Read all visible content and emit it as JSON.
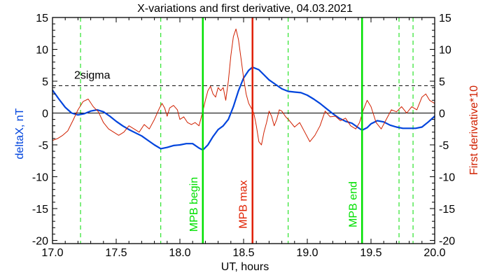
{
  "chart_data": {
    "type": "line",
    "title": "X-variations and first derivative, 04.03.2021",
    "xlabel": "UT, hours",
    "ylabel_left": "deltaX, nT",
    "ylabel_right": "First derivative*10",
    "xlim": [
      17.0,
      20.0
    ],
    "ylim": [
      -20.5,
      15
    ],
    "x_ticks": [
      "17.0",
      "17.5",
      "18.0",
      "18.5",
      "19.0",
      "19.5",
      "20.0"
    ],
    "x_tick_values": [
      17.0,
      17.5,
      18.0,
      18.5,
      19.0,
      19.5,
      20.0
    ],
    "y_ticks": [
      "15",
      "10",
      "5",
      "0",
      "-5",
      "-10",
      "-15",
      "-20"
    ],
    "y_tick_values": [
      15,
      10,
      5,
      0,
      -5,
      -10,
      -15,
      -20
    ],
    "threshold": {
      "label": "2sigma",
      "value": 4.3
    },
    "zero_line": 0,
    "dashed_vlines": [
      17.22,
      17.85,
      18.85,
      19.72,
      19.83
    ],
    "markers": [
      {
        "label": "MPB begin",
        "x": 18.18,
        "color": "#00e000"
      },
      {
        "label": "MPB max",
        "x": 18.57,
        "color": "#e02000"
      },
      {
        "label": "MPB end",
        "x": 19.43,
        "color": "#00e000"
      }
    ],
    "colors": {
      "deltaX": "#0044dd",
      "derivative": "#d02000",
      "dashed_vline": "#00dd00"
    },
    "series": [
      {
        "name": "deltaX, nT",
        "color": "#0044dd",
        "x": [
          17.0,
          17.05,
          17.1,
          17.15,
          17.2,
          17.25,
          17.3,
          17.35,
          17.4,
          17.45,
          17.5,
          17.55,
          17.6,
          17.65,
          17.7,
          17.75,
          17.8,
          17.85,
          17.9,
          17.95,
          18.0,
          18.05,
          18.1,
          18.15,
          18.18,
          18.22,
          18.26,
          18.3,
          18.34,
          18.38,
          18.42,
          18.46,
          18.5,
          18.54,
          18.57,
          18.62,
          18.66,
          18.7,
          18.75,
          18.8,
          18.85,
          18.9,
          18.95,
          19.0,
          19.05,
          19.1,
          19.15,
          19.2,
          19.25,
          19.3,
          19.35,
          19.4,
          19.43,
          19.47,
          19.5,
          19.55,
          19.6,
          19.65,
          19.7,
          19.75,
          19.8,
          19.85,
          19.9,
          19.95,
          20.0
        ],
        "y": [
          3.6,
          2.2,
          0.9,
          0.0,
          -0.3,
          -0.1,
          0.3,
          0.5,
          0.2,
          -0.5,
          -1.3,
          -2.0,
          -2.6,
          -3.1,
          -3.6,
          -4.3,
          -5.0,
          -5.6,
          -5.4,
          -5.1,
          -5.0,
          -4.8,
          -4.8,
          -5.5,
          -5.8,
          -5.0,
          -3.7,
          -2.6,
          -2.0,
          -1.0,
          1.0,
          3.5,
          5.5,
          6.7,
          7.2,
          6.8,
          6.0,
          5.2,
          4.5,
          3.8,
          3.4,
          3.3,
          3.2,
          2.8,
          2.2,
          1.5,
          0.7,
          -0.1,
          -0.8,
          -1.3,
          -1.6,
          -2.3,
          -2.7,
          -2.3,
          -1.7,
          -1.2,
          -1.4,
          -1.9,
          -2.2,
          -2.4,
          -2.4,
          -2.4,
          -2.2,
          -1.4,
          -0.5
        ]
      },
      {
        "name": "First derivative*10",
        "color": "#d02000",
        "x": [
          17.0,
          17.04,
          17.08,
          17.12,
          17.16,
          17.2,
          17.24,
          17.28,
          17.32,
          17.36,
          17.4,
          17.44,
          17.48,
          17.52,
          17.56,
          17.6,
          17.64,
          17.68,
          17.72,
          17.76,
          17.8,
          17.84,
          17.86,
          17.88,
          17.9,
          17.92,
          17.95,
          17.98,
          18.0,
          18.03,
          18.06,
          18.09,
          18.12,
          18.15,
          18.18,
          18.2,
          18.22,
          18.24,
          18.26,
          18.28,
          18.3,
          18.32,
          18.34,
          18.36,
          18.38,
          18.4,
          18.42,
          18.44,
          18.46,
          18.48,
          18.5,
          18.52,
          18.54,
          18.56,
          18.58,
          18.6,
          18.62,
          18.64,
          18.66,
          18.68,
          18.7,
          18.72,
          18.74,
          18.76,
          18.78,
          18.8,
          18.83,
          18.86,
          18.9,
          18.94,
          18.98,
          19.02,
          19.06,
          19.1,
          19.14,
          19.18,
          19.22,
          19.26,
          19.3,
          19.34,
          19.38,
          19.41,
          19.44,
          19.47,
          19.5,
          19.54,
          19.58,
          19.62,
          19.66,
          19.7,
          19.74,
          19.78,
          19.82,
          19.86,
          19.9,
          19.93,
          19.96,
          20.0
        ],
        "y": [
          -4.3,
          -4.0,
          -3.5,
          -2.8,
          -1.2,
          0.5,
          1.8,
          2.2,
          1.0,
          0.2,
          -1.5,
          -2.5,
          -3.0,
          -3.5,
          -3.0,
          -2.0,
          -2.5,
          -3.0,
          -1.8,
          -2.5,
          -1.0,
          0.8,
          1.5,
          0.8,
          -0.5,
          0.8,
          1.2,
          0.5,
          -1.0,
          -0.6,
          -1.5,
          -1.8,
          -1.5,
          -2.0,
          0.3,
          2.0,
          3.5,
          4.2,
          3.0,
          2.5,
          4.0,
          3.5,
          4.0,
          2.0,
          5.0,
          9.0,
          12.0,
          13.2,
          11.5,
          8.5,
          5.5,
          3.0,
          1.5,
          0.8,
          0.0,
          -2.0,
          -4.5,
          -5.0,
          -3.0,
          -1.5,
          0.3,
          -0.5,
          -2.0,
          -1.0,
          0.5,
          0.3,
          -0.6,
          -1.2,
          -2.2,
          -1.5,
          -3.0,
          -4.5,
          -3.5,
          -2.0,
          0.3,
          -0.6,
          -0.5,
          -1.2,
          -0.8,
          -2.0,
          -2.5,
          -1.5,
          0.5,
          2.0,
          1.0,
          -1.5,
          -2.5,
          -1.0,
          0.5,
          0.2,
          1.0,
          0.0,
          1.0,
          0.5,
          2.5,
          3.0,
          2.0,
          1.5
        ]
      }
    ]
  }
}
